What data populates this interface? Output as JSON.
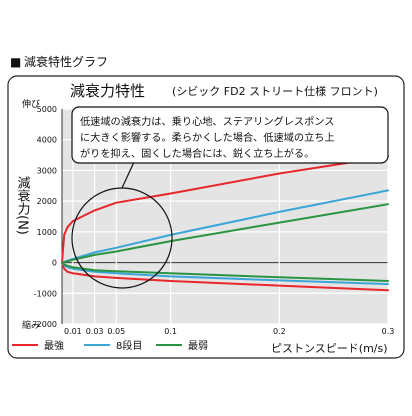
{
  "page": {
    "section_marker": "■",
    "section_title": "減衰特性グラフ"
  },
  "colors": {
    "strongest": "#e8262b",
    "step8": "#3aa6d8",
    "weakest": "#2a9443",
    "plot_bg": "#e4e4e4",
    "grid": "#ffffff"
  },
  "chart_data": {
    "type": "line",
    "title": "減衰力特性",
    "subtitle": "(シビック FD2 ストリート仕様 フロント)",
    "xlabel": "ピストンスピード(m/s)",
    "ylabel": "減衰力(N)",
    "y_top_label": "伸び",
    "y_bottom_label": "縮み",
    "xlim": [
      0,
      0.3
    ],
    "ylim": [
      -2000,
      5000
    ],
    "x_ticks": [
      0.01,
      0.03,
      0.05,
      0.1,
      0.2,
      0.3
    ],
    "x_tick_labels": [
      "0.01",
      "0.03",
      "0.05",
      "0.1",
      "0.2",
      "0.3"
    ],
    "y_ticks": [
      5000,
      4000,
      3000,
      2000,
      1000,
      0,
      -1000,
      -2000
    ],
    "y_tick_labels": [
      "5000",
      "4000",
      "3000",
      "2000",
      "1000",
      "0",
      "-1000",
      "-2000"
    ],
    "grid": true,
    "legend_position": "bottom",
    "annotation": "低速域の減衰力は、乗り心地、ステアリングレスポンスに大きく影響する。柔らかくした場合、低速域の立ち上がりを抑え、固くした場合には、鋭く立ち上がる。",
    "annotation_lines": [
      "低速域の減衰力は、乗り心地、ステアリングレスポンス",
      "に大きく影響する。柔らかくした場合、低速域の立ち上",
      "がりを抑え、固くした場合には、鋭く立ち上がる。"
    ],
    "series": [
      {
        "name": "最強",
        "color": "#e8262b",
        "x": [
          0,
          0.002,
          0.005,
          0.01,
          0.03,
          0.05,
          0.1,
          0.2,
          0.3
        ],
        "extension": [
          0,
          900,
          1150,
          1350,
          1700,
          1950,
          2250,
          2900,
          3450
        ],
        "compression": [
          0,
          -200,
          -300,
          -350,
          -450,
          -500,
          -600,
          -750,
          -900
        ]
      },
      {
        "name": "8段目",
        "color": "#3aa6d8",
        "x": [
          0,
          0.002,
          0.005,
          0.01,
          0.03,
          0.05,
          0.1,
          0.2,
          0.3
        ],
        "extension": [
          0,
          20,
          60,
          120,
          330,
          480,
          900,
          1650,
          2350
        ],
        "compression": [
          0,
          -80,
          -150,
          -200,
          -300,
          -350,
          -450,
          -580,
          -700
        ]
      },
      {
        "name": "最弱",
        "color": "#2a9443",
        "x": [
          0,
          0.002,
          0.005,
          0.01,
          0.03,
          0.05,
          0.1,
          0.2,
          0.3
        ],
        "extension": [
          0,
          15,
          40,
          90,
          250,
          360,
          700,
          1300,
          1900
        ],
        "compression": [
          0,
          -60,
          -110,
          -150,
          -250,
          -280,
          -350,
          -480,
          -600
        ]
      }
    ]
  }
}
